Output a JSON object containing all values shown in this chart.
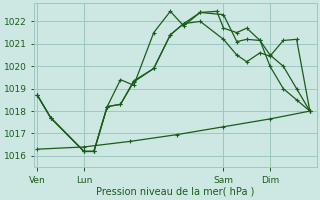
{
  "background_color": "#cde8e3",
  "grid_color": "#9dc8c0",
  "line_color": "#1a5c1a",
  "xlabel": "Pression niveau de la mer( hPa )",
  "ylim": [
    1015.5,
    1022.8
  ],
  "yticks": [
    1016,
    1017,
    1018,
    1019,
    1020,
    1021,
    1022
  ],
  "xtick_labels": [
    "Ven",
    "Lun",
    "Sam",
    "Dim"
  ],
  "xtick_positions": [
    0,
    14,
    56,
    70
  ],
  "xlim": [
    -1,
    84
  ],
  "vline_positions": [
    0,
    14,
    56,
    70
  ],
  "line_a": {
    "x": [
      0,
      4,
      14,
      17,
      21,
      25,
      29,
      35,
      40,
      44,
      49,
      54,
      56,
      60,
      63,
      67,
      70,
      74,
      78,
      82
    ],
    "y": [
      1018.7,
      1017.7,
      1016.2,
      1016.2,
      1018.2,
      1018.3,
      1019.3,
      1019.9,
      1021.4,
      1021.9,
      1022.4,
      1022.45,
      1021.7,
      1021.5,
      1021.7,
      1021.15,
      1020.5,
      1020.0,
      1019.0,
      1018.0
    ]
  },
  "line_b": {
    "x": [
      0,
      4,
      14,
      17,
      21,
      25,
      29,
      35,
      40,
      44,
      49,
      56,
      60,
      63,
      67,
      70,
      74,
      78,
      82
    ],
    "y": [
      1018.7,
      1017.7,
      1016.2,
      1016.2,
      1018.2,
      1019.4,
      1019.15,
      1021.5,
      1022.45,
      1021.8,
      1022.4,
      1022.3,
      1021.1,
      1021.2,
      1021.15,
      1020.0,
      1019.0,
      1018.5,
      1018.0
    ]
  },
  "line_c": {
    "x": [
      0,
      4,
      14,
      17,
      21,
      25,
      29,
      35,
      40,
      44,
      49,
      56,
      60,
      63,
      67,
      70,
      74,
      78,
      82
    ],
    "y": [
      1018.7,
      1017.7,
      1016.2,
      1016.2,
      1018.2,
      1018.3,
      1019.35,
      1019.9,
      1021.4,
      1021.9,
      1022.0,
      1021.2,
      1020.5,
      1020.2,
      1020.6,
      1020.45,
      1021.15,
      1021.2,
      1018.0
    ]
  },
  "line_d": {
    "x": [
      0,
      14,
      28,
      42,
      56,
      70,
      82
    ],
    "y": [
      1016.3,
      1016.4,
      1016.65,
      1016.95,
      1017.3,
      1017.65,
      1018.0
    ]
  },
  "figsize": [
    3.2,
    2.0
  ],
  "dpi": 100
}
